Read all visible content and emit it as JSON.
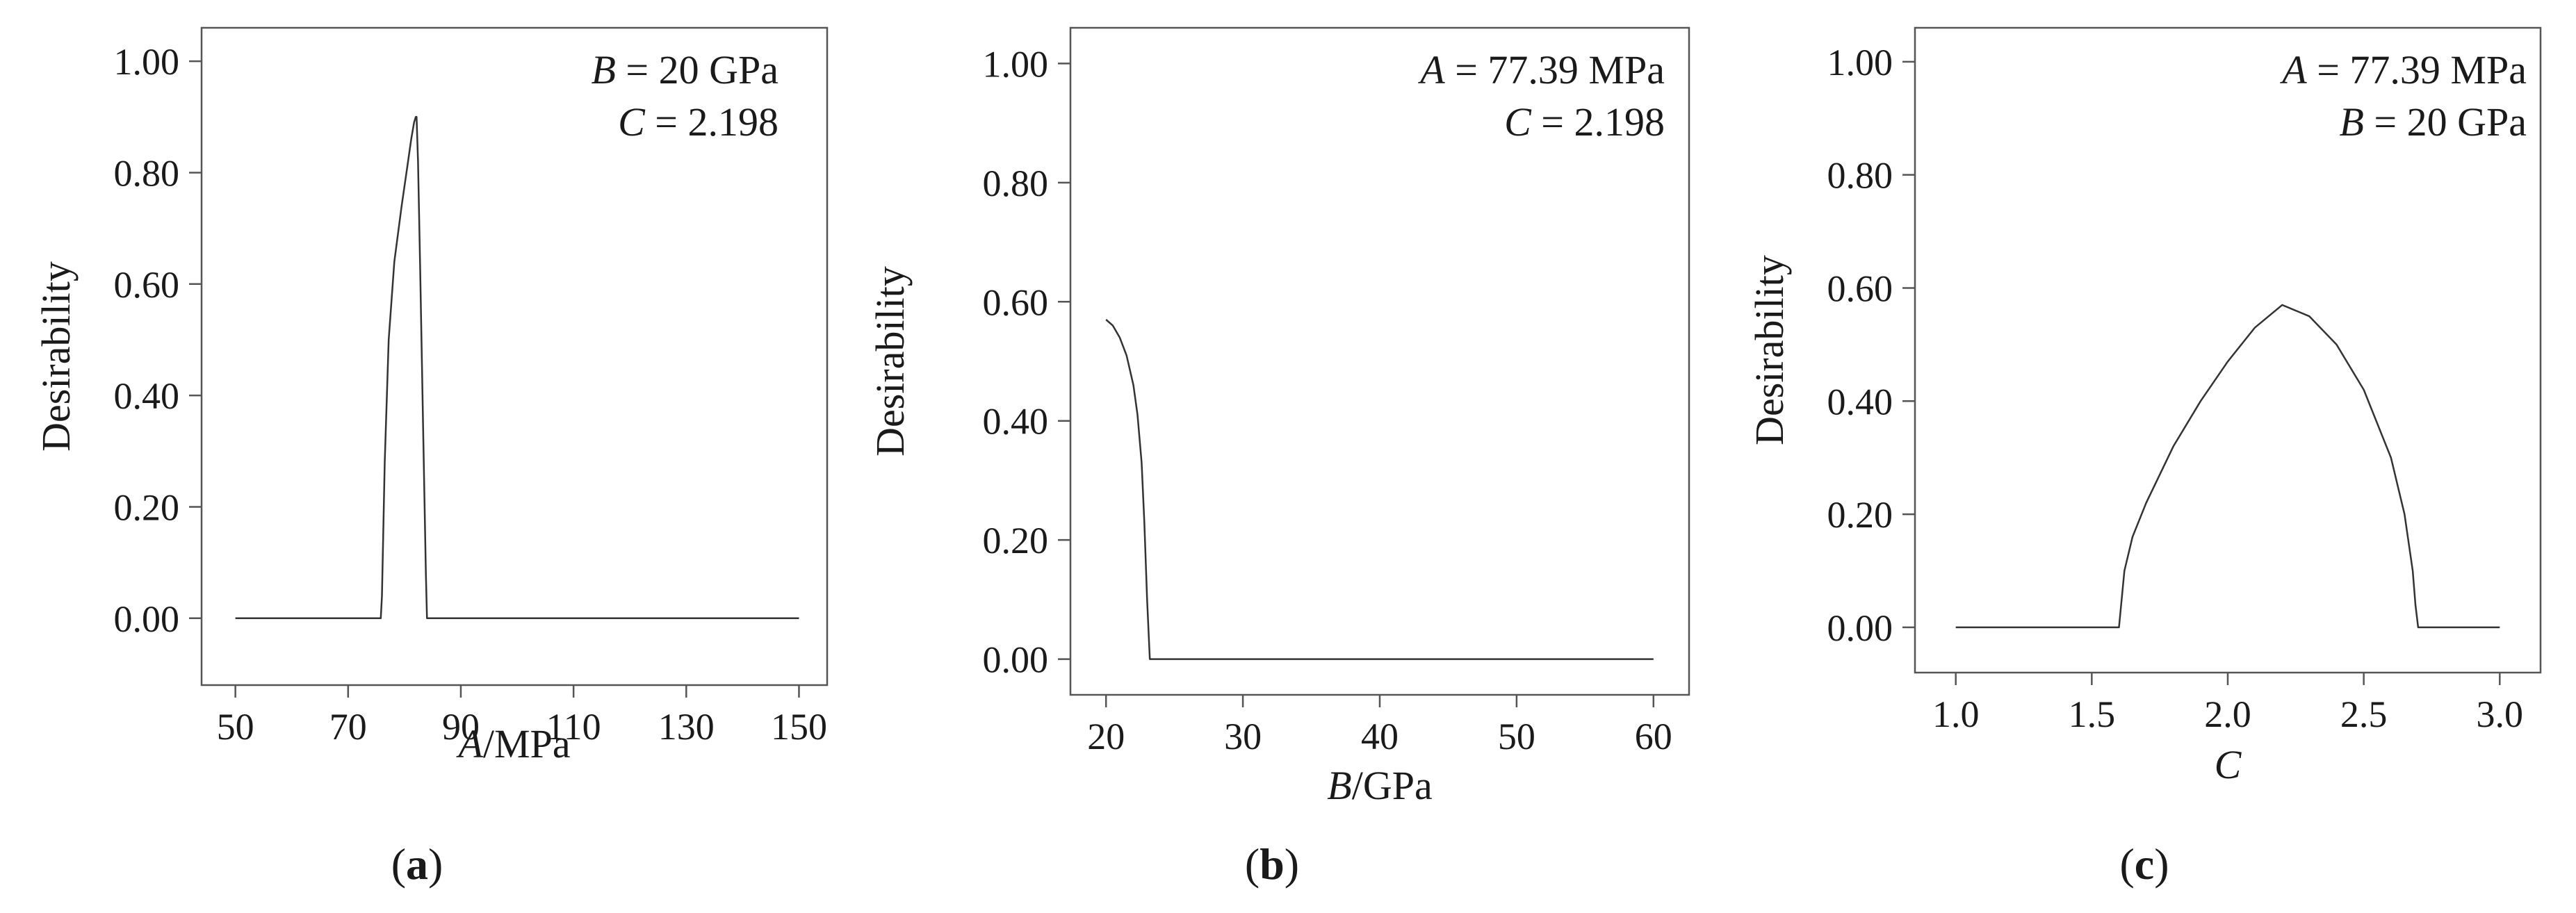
{
  "chart_data": [
    {
      "type": "line",
      "panel_label": [
        "(",
        "a",
        ")"
      ],
      "xlabel": {
        "var": "A",
        "unit": "/MPa"
      },
      "ylabel": "Desirability",
      "xlim": [
        44,
        155
      ],
      "ylim": [
        -0.12,
        1.06
      ],
      "xticks": [
        50,
        70,
        90,
        110,
        130,
        150
      ],
      "xtick_labels": [
        "50",
        "70",
        "90",
        "110",
        "130",
        "150"
      ],
      "yticks": [
        0,
        0.2,
        0.4,
        0.6,
        0.8,
        1.0
      ],
      "ytick_labels": [
        "0.00",
        "0.20",
        "0.40",
        "0.60",
        "0.80",
        "1.00"
      ],
      "annotations": [
        {
          "var": "B",
          "rest": " = 20 GPa"
        },
        {
          "var": "C",
          "rest": " = 2.198"
        }
      ],
      "grid": false,
      "legend": "none",
      "series": [
        {
          "x": [
            50,
            75.8,
            76,
            76.5,
            77.2,
            78.2,
            79.5,
            80.5,
            81.2,
            81.7,
            82.0,
            82.15,
            82.4,
            82.8,
            83.3,
            83.8,
            84.0,
            84.2,
            150
          ],
          "y": [
            0,
            0,
            0.04,
            0.28,
            0.5,
            0.64,
            0.74,
            0.81,
            0.86,
            0.89,
            0.9,
            0.9,
            0.82,
            0.62,
            0.35,
            0.08,
            0.0,
            0,
            0
          ]
        }
      ]
    },
    {
      "type": "line",
      "panel_label": [
        "(",
        "b",
        ")"
      ],
      "xlabel": {
        "var": "B",
        "unit": "/GPa"
      },
      "ylabel": "Desirability",
      "xlim": [
        17.4,
        62.6
      ],
      "ylim": [
        -0.06,
        1.06
      ],
      "xticks": [
        20,
        30,
        40,
        50,
        60
      ],
      "xtick_labels": [
        "20",
        "30",
        "40",
        "50",
        "60"
      ],
      "yticks": [
        0,
        0.2,
        0.4,
        0.6,
        0.8,
        1.0
      ],
      "ytick_labels": [
        "0.00",
        "0.20",
        "0.40",
        "0.60",
        "0.80",
        "1.00"
      ],
      "annotations": [
        {
          "var": "A",
          "rest": " = 77.39 MPa"
        },
        {
          "var": "C",
          "rest": " = 2.198"
        }
      ],
      "grid": false,
      "legend": "none",
      "series": [
        {
          "x": [
            20,
            20.5,
            21,
            21.5,
            22,
            22.3,
            22.6,
            22.8,
            23.0,
            23.2,
            60
          ],
          "y": [
            0.57,
            0.56,
            0.54,
            0.51,
            0.46,
            0.41,
            0.33,
            0.23,
            0.1,
            0,
            0
          ]
        }
      ]
    },
    {
      "type": "line",
      "panel_label": [
        "(",
        "c",
        ")"
      ],
      "xlabel": {
        "var": "C",
        "unit": ""
      },
      "ylabel": "Desirability",
      "xlim": [
        0.85,
        3.15
      ],
      "ylim": [
        -0.08,
        1.06
      ],
      "xticks": [
        1.0,
        1.5,
        2.0,
        2.5,
        3.0
      ],
      "xtick_labels": [
        "1.0",
        "1.5",
        "2.0",
        "2.5",
        "3.0"
      ],
      "yticks": [
        0,
        0.2,
        0.4,
        0.6,
        0.8,
        1.0
      ],
      "ytick_labels": [
        "0.00",
        "0.20",
        "0.40",
        "0.60",
        "0.80",
        "1.00"
      ],
      "annotations": [
        {
          "var": "A",
          "rest": " = 77.39 MPa"
        },
        {
          "var": "B",
          "rest": " = 20 GPa"
        }
      ],
      "grid": false,
      "legend": "none",
      "series": [
        {
          "x": [
            1.0,
            1.6,
            1.61,
            1.62,
            1.65,
            1.7,
            1.8,
            1.9,
            2.0,
            2.1,
            2.2,
            2.3,
            2.4,
            2.5,
            2.6,
            2.65,
            2.68,
            2.69,
            2.7,
            3.0
          ],
          "y": [
            0,
            0,
            0.05,
            0.1,
            0.16,
            0.22,
            0.32,
            0.4,
            0.47,
            0.53,
            0.57,
            0.55,
            0.5,
            0.42,
            0.3,
            0.2,
            0.1,
            0.04,
            0,
            0
          ]
        }
      ]
    }
  ]
}
